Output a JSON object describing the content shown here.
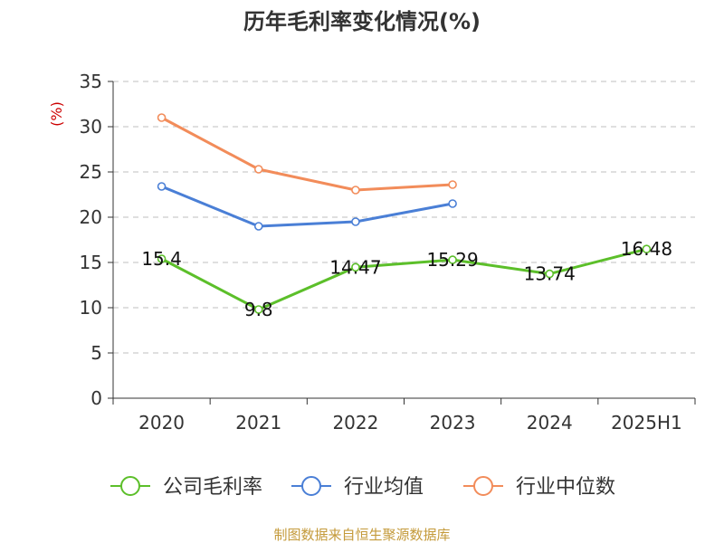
{
  "title": "历年毛利率变化情况(%)",
  "source": "制图数据来自恒生聚源数据库",
  "chart_data": {
    "type": "line",
    "title": "历年毛利率变化情况(%)",
    "ylabel": "(%)",
    "categories": [
      "2020",
      "2021",
      "2022",
      "2023",
      "2024",
      "2025H1"
    ],
    "ylim": [
      0,
      35
    ],
    "yticks": [
      0,
      5,
      10,
      15,
      20,
      25,
      30,
      35
    ],
    "grid": true,
    "legend_position": "bottom",
    "series": [
      {
        "name": "公司毛利率",
        "color": "#5cbf2a",
        "values": [
          15.4,
          9.8,
          14.47,
          15.29,
          13.74,
          16.48
        ],
        "labels": [
          "15.4",
          "9.8",
          "14.47",
          "15.29",
          "13.74",
          "16.48"
        ]
      },
      {
        "name": "行业均值",
        "color": "#4a7fd6",
        "values": [
          23.4,
          19.0,
          19.5,
          21.5,
          null,
          null
        ]
      },
      {
        "name": "行业中位数",
        "color": "#f28c5a",
        "values": [
          31.0,
          25.3,
          23.0,
          23.6,
          null,
          null
        ]
      }
    ]
  }
}
